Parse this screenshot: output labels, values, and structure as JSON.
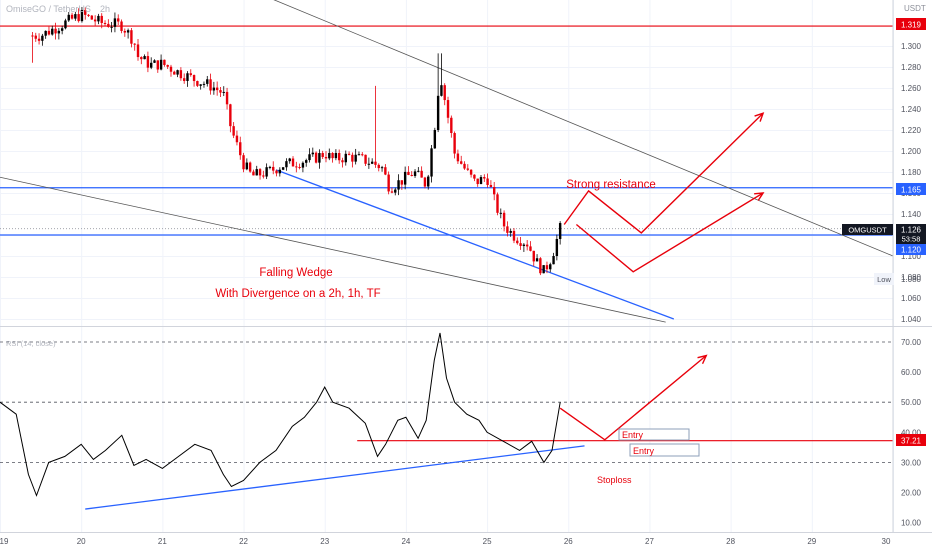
{
  "header": {
    "symbol_text": "OmiseGO / TetherUS",
    "timeframe": "2h",
    "quote_currency": "USDT"
  },
  "colors": {
    "up_candle": "#000000",
    "down_candle": "#e8000b",
    "support_line": "#2962ff",
    "resistance_line": "#2962ff",
    "red_level": "#e8000b",
    "wedge_line": "#555555",
    "annotation": "#e8000b",
    "rsi_line": "#000000"
  },
  "annotations": {
    "pattern_title": "Falling Wedge",
    "pattern_subtitle": "With Divergence on a 2h, 1h, TF",
    "resistance_text": "Strong resistance",
    "entry_text_1": "Entry",
    "entry_text_2": "Entry",
    "stoploss_text": "Stoploss",
    "rsi_title": "RSI (14, close)"
  },
  "price_badges": {
    "top_level": "1.319",
    "resistance": "1.165",
    "symbol_tag": "OMGUSDT",
    "last_price": "1.126",
    "countdown": "53:58",
    "support": "1.120",
    "low_label": "Low",
    "low_value": "1.080",
    "rsi_level": "37.21"
  },
  "chart_data": [
    {
      "type": "candlestick",
      "title": "OmiseGO / TetherUS",
      "y_axis_ticks": [
        "1.300",
        "1.280",
        "1.260",
        "1.240",
        "1.220",
        "1.200",
        "1.180",
        "1.160",
        "1.140",
        "1.120",
        "1.100",
        "1.080",
        "1.060",
        "1.040"
      ],
      "x_axis_ticks": [
        "19",
        "20",
        "21",
        "22",
        "23",
        "24",
        "25",
        "26",
        "27",
        "28",
        "29",
        "30"
      ],
      "ylim": [
        1.03,
        1.33
      ],
      "xlim": [
        19,
        30
      ],
      "horizontal_levels": [
        1.319,
        1.165,
        1.12
      ],
      "last_price": 1.126,
      "low": 1.08,
      "close_path": [
        [
          19.5,
          1.31
        ],
        [
          20.0,
          1.33
        ],
        [
          20.25,
          1.322
        ],
        [
          20.5,
          1.32
        ],
        [
          20.65,
          1.305
        ],
        [
          20.7,
          1.29
        ],
        [
          20.85,
          1.282
        ],
        [
          21.0,
          1.283
        ],
        [
          21.2,
          1.275
        ],
        [
          21.4,
          1.268
        ],
        [
          21.6,
          1.262
        ],
        [
          21.75,
          1.255
        ],
        [
          21.85,
          1.22
        ],
        [
          22.0,
          1.188
        ],
        [
          22.1,
          1.176
        ],
        [
          22.3,
          1.18
        ],
        [
          22.5,
          1.187
        ],
        [
          22.7,
          1.19
        ],
        [
          22.9,
          1.194
        ],
        [
          23.0,
          1.198
        ],
        [
          23.1,
          1.192
        ],
        [
          23.3,
          1.195
        ],
        [
          23.5,
          1.191
        ],
        [
          23.7,
          1.185
        ],
        [
          23.8,
          1.165
        ],
        [
          23.95,
          1.172
        ],
        [
          24.1,
          1.18
        ],
        [
          24.25,
          1.168
        ],
        [
          24.35,
          1.22
        ],
        [
          24.42,
          1.275
        ],
        [
          24.5,
          1.24
        ],
        [
          24.6,
          1.198
        ],
        [
          24.75,
          1.18
        ],
        [
          24.85,
          1.17
        ],
        [
          25.0,
          1.175
        ],
        [
          25.1,
          1.15
        ],
        [
          25.2,
          1.13
        ],
        [
          25.35,
          1.118
        ],
        [
          25.5,
          1.112
        ],
        [
          25.6,
          1.095
        ],
        [
          25.7,
          1.085
        ],
        [
          25.8,
          1.1
        ],
        [
          25.9,
          1.126
        ]
      ],
      "trendlines": [
        {
          "from": [
            22.4,
            1.182
          ],
          "to": [
            27.3,
            1.04
          ]
        },
        {
          "from": [
            22.0,
            1.356
          ],
          "to": [
            30.0,
            1.1
          ]
        },
        {
          "from": [
            19.0,
            1.175
          ],
          "to": [
            27.2,
            1.037
          ]
        }
      ],
      "projection_paths": [
        [
          [
            25.95,
            1.13
          ],
          [
            26.25,
            1.162
          ],
          [
            26.9,
            1.122
          ],
          [
            28.4,
            1.236
          ]
        ],
        [
          [
            26.1,
            1.13
          ],
          [
            26.8,
            1.085
          ],
          [
            28.4,
            1.16
          ]
        ]
      ]
    },
    {
      "type": "line",
      "title": "RSI (14, close)",
      "y_axis_ticks": [
        "70.00",
        "60.00",
        "50.00",
        "40.00",
        "30.00",
        "20.00",
        "10.00"
      ],
      "ylim": [
        5,
        78
      ],
      "dashed_levels": [
        70,
        50,
        30
      ],
      "red_level": 37.21,
      "rsi_path": [
        [
          19.0,
          50
        ],
        [
          19.2,
          46
        ],
        [
          19.35,
          26
        ],
        [
          19.45,
          19
        ],
        [
          19.6,
          30
        ],
        [
          19.8,
          32
        ],
        [
          20.0,
          36
        ],
        [
          20.15,
          31
        ],
        [
          20.3,
          34
        ],
        [
          20.5,
          39
        ],
        [
          20.65,
          29
        ],
        [
          20.8,
          31
        ],
        [
          21.0,
          28
        ],
        [
          21.2,
          32
        ],
        [
          21.4,
          36
        ],
        [
          21.6,
          34
        ],
        [
          21.75,
          26
        ],
        [
          21.85,
          22
        ],
        [
          22.0,
          24
        ],
        [
          22.2,
          30
        ],
        [
          22.4,
          34
        ],
        [
          22.6,
          42
        ],
        [
          22.75,
          45
        ],
        [
          22.9,
          50
        ],
        [
          23.0,
          55
        ],
        [
          23.1,
          50
        ],
        [
          23.3,
          48
        ],
        [
          23.5,
          43
        ],
        [
          23.65,
          32
        ],
        [
          23.75,
          36
        ],
        [
          23.9,
          44
        ],
        [
          24.0,
          45
        ],
        [
          24.15,
          38
        ],
        [
          24.25,
          44
        ],
        [
          24.35,
          64
        ],
        [
          24.42,
          73
        ],
        [
          24.5,
          58
        ],
        [
          24.6,
          50
        ],
        [
          24.75,
          46
        ],
        [
          24.9,
          44
        ],
        [
          25.0,
          40
        ],
        [
          25.2,
          37
        ],
        [
          25.4,
          34
        ],
        [
          25.55,
          37
        ],
        [
          25.7,
          30
        ],
        [
          25.8,
          34
        ],
        [
          25.9,
          50
        ]
      ],
      "trendline": {
        "from": [
          20.05,
          14.5
        ],
        "to": [
          26.2,
          35.5
        ]
      },
      "projection_path": [
        [
          25.9,
          48
        ],
        [
          26.45,
          37.5
        ],
        [
          27.7,
          65.5
        ]
      ]
    }
  ]
}
